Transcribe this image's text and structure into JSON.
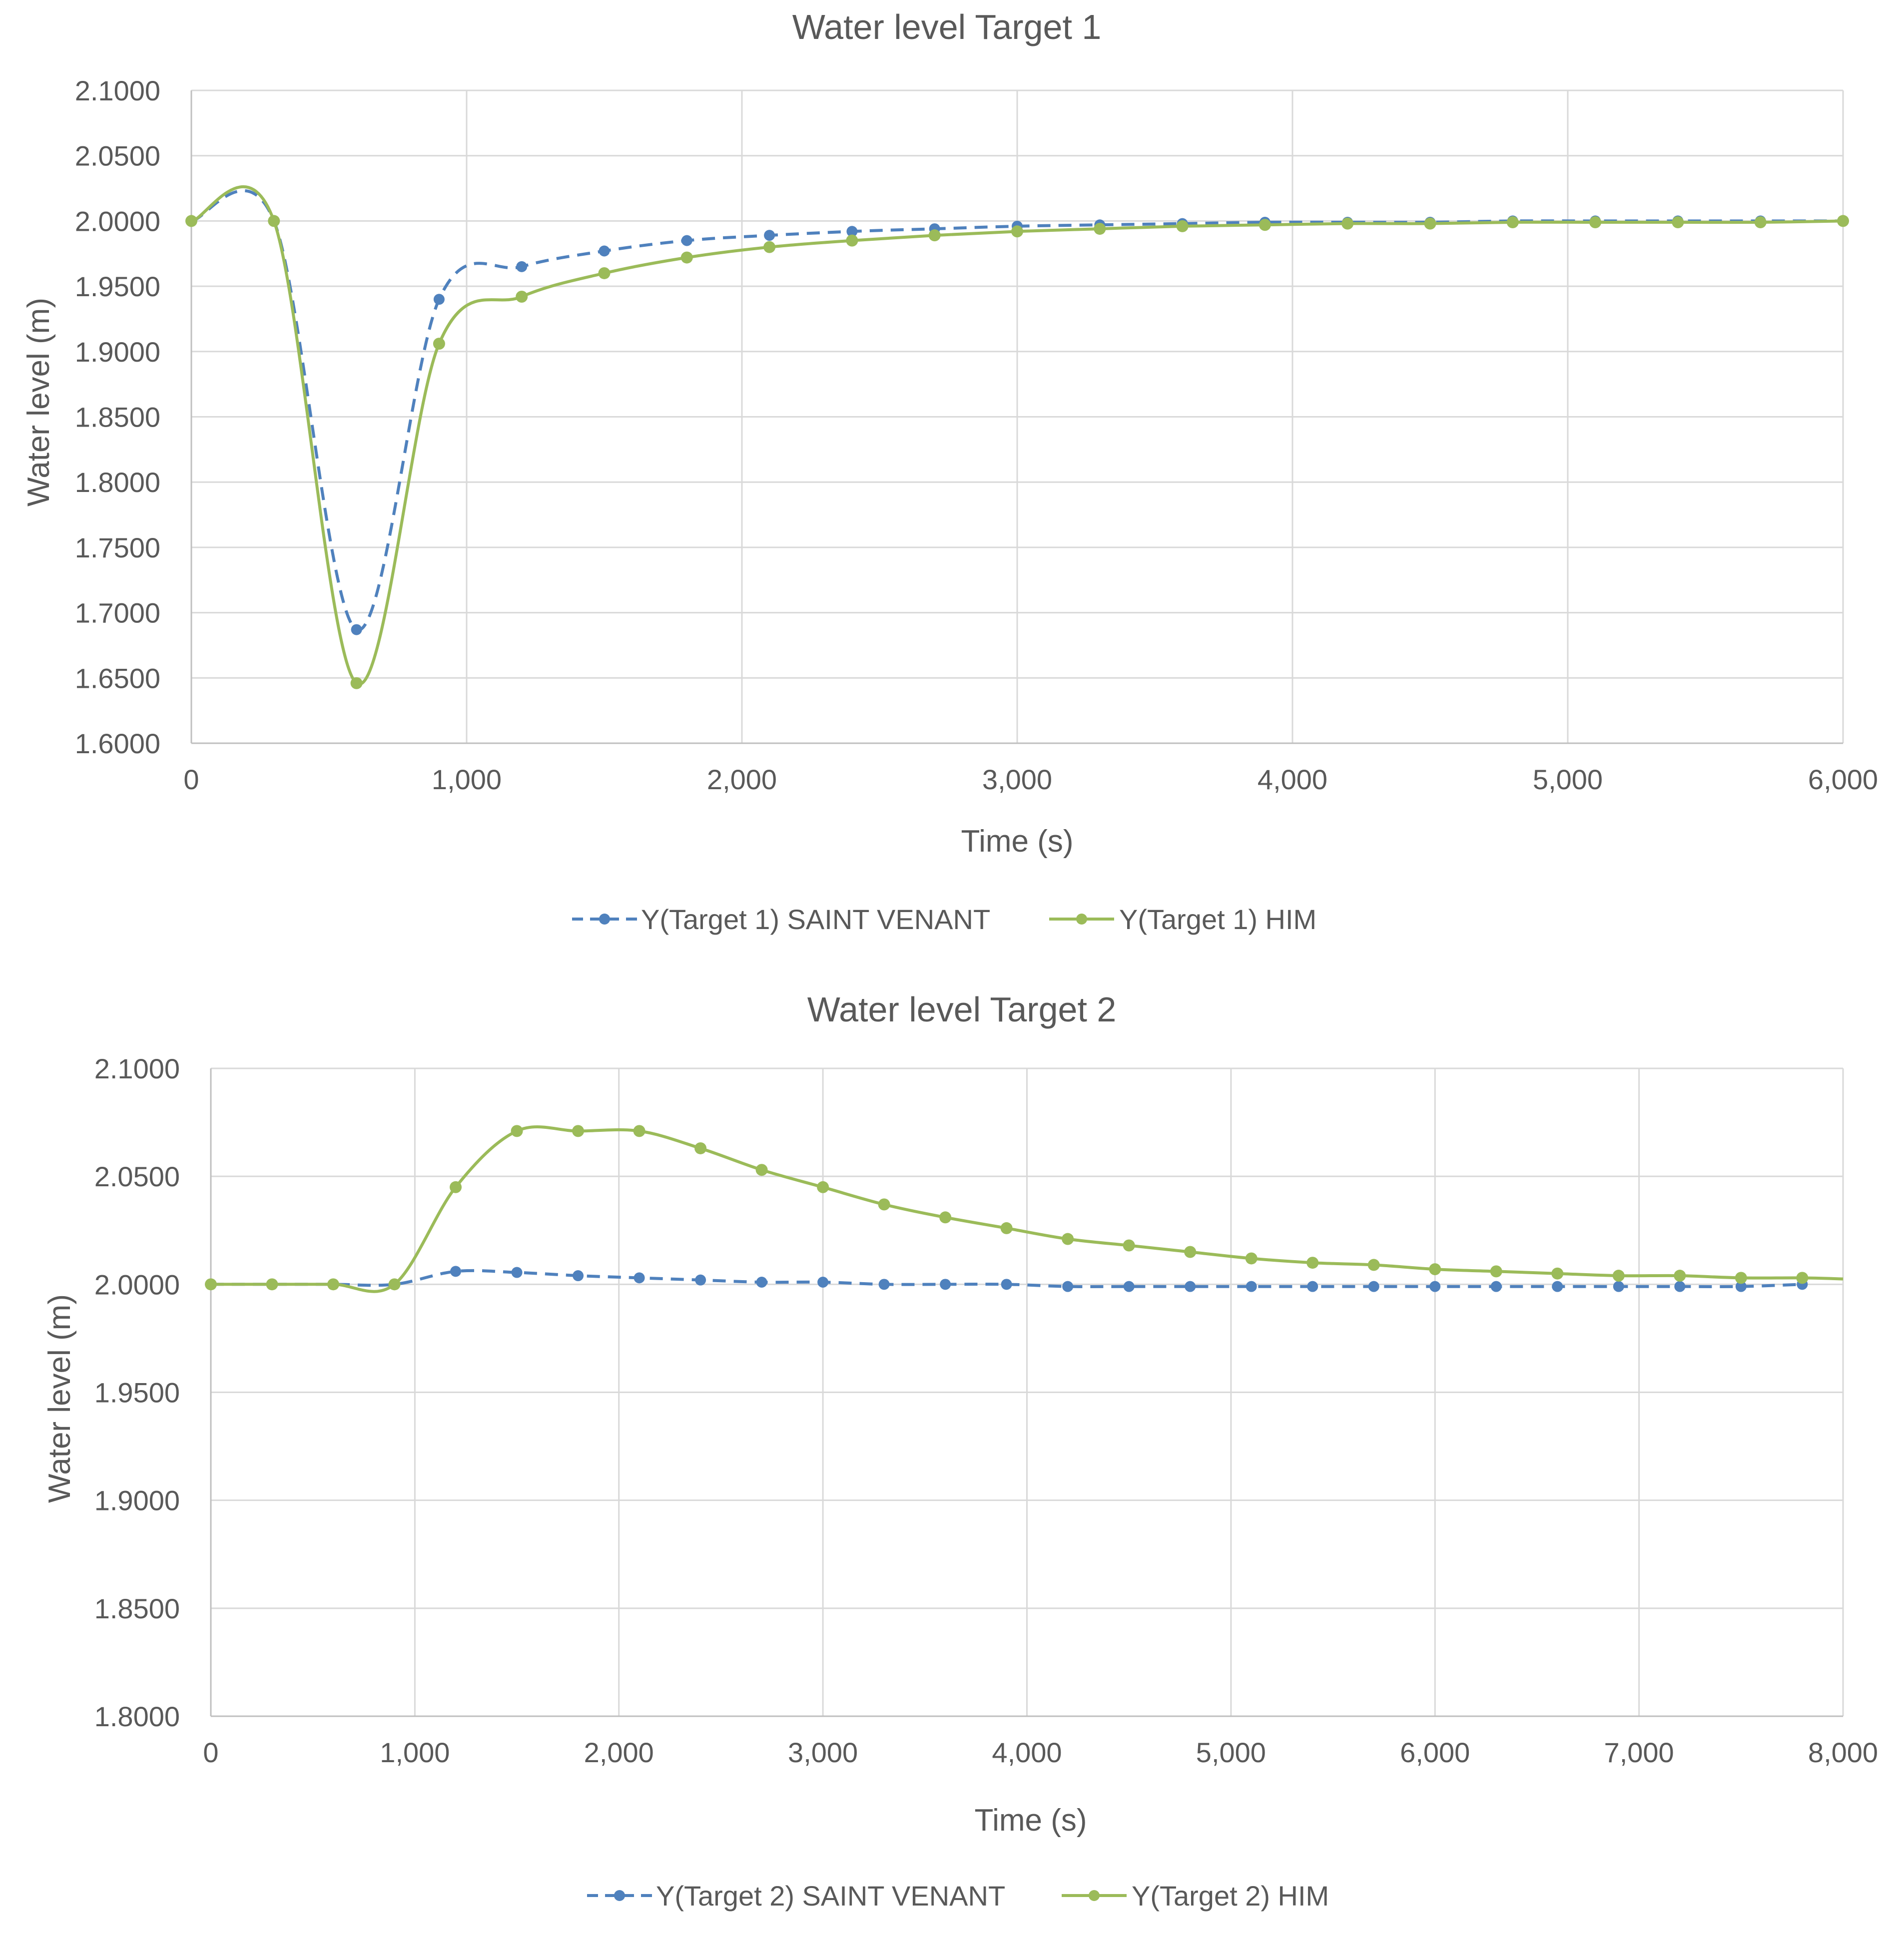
{
  "colors": {
    "saint_venant": "#4F81BD",
    "him": "#9BBB59",
    "grid": "#D9D9D9",
    "axis_text": "#595959",
    "title_text": "#595959"
  },
  "chart_data": [
    {
      "type": "line",
      "title": "Water level Target 1",
      "xlabel": "Time (s)",
      "ylabel": "Water level (m)",
      "xlim": [
        0,
        6000
      ],
      "ylim": [
        1.6,
        2.1
      ],
      "x_ticks": [
        0,
        1000,
        2000,
        3000,
        4000,
        5000,
        6000
      ],
      "x_tick_labels": [
        "0",
        "1,000",
        "2,000",
        "3,000",
        "4,000",
        "5,000",
        "6,000"
      ],
      "y_ticks": [
        1.6,
        1.65,
        1.7,
        1.75,
        1.8,
        1.85,
        1.9,
        1.95,
        2.0,
        2.05,
        2.1
      ],
      "y_tick_labels": [
        "1.6000",
        "1.6500",
        "1.7000",
        "1.7500",
        "1.8000",
        "1.8500",
        "1.9000",
        "1.9500",
        "2.0000",
        "2.0500",
        "2.1000"
      ],
      "grid": true,
      "legend_position": "bottom",
      "series": [
        {
          "name": "Y(Target 1) SAINT VENANT",
          "color": "#4F81BD",
          "dash": true,
          "x": [
            0,
            300,
            600,
            900,
            1200,
            1500,
            1800,
            2100,
            2400,
            2700,
            3000,
            3300,
            3600,
            3900,
            4200,
            4500,
            4800,
            5100,
            5400,
            5700,
            6000
          ],
          "y": [
            2.0,
            2.0,
            1.687,
            1.94,
            1.965,
            1.977,
            1.985,
            1.989,
            1.992,
            1.994,
            1.996,
            1.997,
            1.998,
            1.999,
            1.999,
            1.999,
            2.0,
            2.0,
            2.0,
            2.0,
            2.0
          ]
        },
        {
          "name": "Y(Target 1) HIM",
          "color": "#9BBB59",
          "dash": false,
          "x": [
            0,
            300,
            600,
            900,
            1200,
            1500,
            1800,
            2100,
            2400,
            2700,
            3000,
            3300,
            3600,
            3900,
            4200,
            4500,
            4800,
            5100,
            5400,
            5700,
            6000
          ],
          "y": [
            2.0,
            2.0,
            1.646,
            1.906,
            1.942,
            1.96,
            1.972,
            1.98,
            1.985,
            1.989,
            1.992,
            1.994,
            1.996,
            1.997,
            1.998,
            1.998,
            1.999,
            1.999,
            1.999,
            1.999,
            2.0
          ]
        }
      ]
    },
    {
      "type": "line",
      "title": "Water level Target 2",
      "xlabel": "Time (s)",
      "ylabel": "Water level (m)",
      "xlim": [
        0,
        8000
      ],
      "ylim": [
        1.8,
        2.1
      ],
      "x_ticks": [
        0,
        1000,
        2000,
        3000,
        4000,
        5000,
        6000,
        7000,
        8000
      ],
      "x_tick_labels": [
        "0",
        "1,000",
        "2,000",
        "3,000",
        "4,000",
        "5,000",
        "6,000",
        "7,000",
        "8,000"
      ],
      "y_ticks": [
        1.8,
        1.85,
        1.9,
        1.95,
        2.0,
        2.05,
        2.1
      ],
      "y_tick_labels": [
        "1.8000",
        "1.8500",
        "1.9000",
        "1.9500",
        "2.0000",
        "2.0500",
        "2.1000"
      ],
      "grid": true,
      "legend_position": "bottom",
      "series": [
        {
          "name": "Y(Target 2) SAINT VENANT",
          "color": "#4F81BD",
          "dash": true,
          "x": [
            0,
            300,
            600,
            900,
            1200,
            1500,
            1800,
            2100,
            2400,
            2700,
            3000,
            3300,
            3600,
            3900,
            4200,
            4500,
            4800,
            5100,
            5400,
            5700,
            6000,
            6300,
            6600,
            6900,
            7200,
            7500,
            7800
          ],
          "y": [
            2.0,
            2.0,
            2.0,
            2.0,
            2.006,
            2.0055,
            2.004,
            2.003,
            2.002,
            2.001,
            2.001,
            2.0,
            2.0,
            2.0,
            1.999,
            1.999,
            1.999,
            1.999,
            1.999,
            1.999,
            1.999,
            1.999,
            1.999,
            1.999,
            1.999,
            1.999,
            2.0
          ]
        },
        {
          "name": "Y(Target 2) HIM",
          "color": "#9BBB59",
          "dash": false,
          "x": [
            0,
            300,
            600,
            900,
            1200,
            1500,
            1800,
            2100,
            2400,
            2700,
            3000,
            3300,
            3600,
            3900,
            4200,
            4500,
            4800,
            5100,
            5400,
            5700,
            6000,
            6300,
            6600,
            6900,
            7200,
            7500,
            7800
          ],
          "y": [
            2.0,
            2.0,
            2.0,
            2.0,
            2.045,
            2.071,
            2.071,
            2.071,
            2.063,
            2.053,
            2.045,
            2.037,
            2.031,
            2.026,
            2.021,
            2.018,
            2.015,
            2.012,
            2.01,
            2.009,
            2.007,
            2.006,
            2.005,
            2.004,
            2.004,
            2.003,
            2.003
          ],
          "line_end": [
            8000,
            2.0025
          ]
        }
      ]
    }
  ]
}
